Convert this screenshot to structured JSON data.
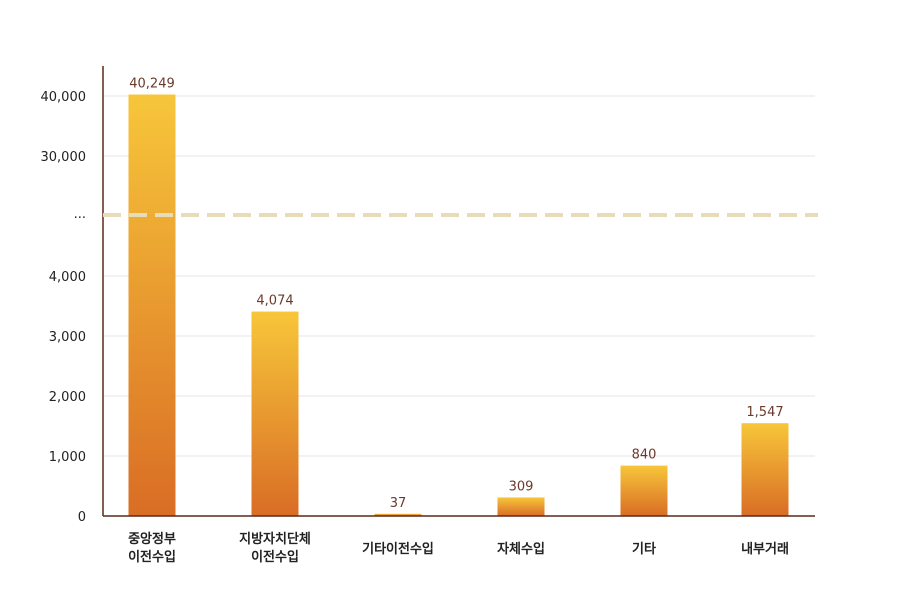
{
  "chart_data": {
    "type": "bar",
    "title": "",
    "xlabel": "",
    "ylabel": "",
    "broken_axis": true,
    "break_label": "...",
    "lower_ticks": [
      "0",
      "1,000",
      "2,000",
      "3,000",
      "4,000"
    ],
    "upper_ticks": [
      "30,000",
      "40,000"
    ],
    "categories": [
      [
        "중앙정부",
        "이전수입"
      ],
      [
        "지방자치단체",
        "이전수입"
      ],
      [
        "기타이전수입"
      ],
      [
        "자체수입"
      ],
      [
        "기타"
      ],
      [
        "내부거래"
      ]
    ],
    "values": [
      40249,
      4074,
      37,
      309,
      840,
      1547
    ],
    "value_labels": [
      "40,249",
      "4,074",
      "37",
      "309",
      "840",
      "1,547"
    ],
    "grid": true,
    "colors": {
      "bar_top": "#f7c63a",
      "bar_bottom": "#d96d25",
      "axis": "#5a2a1a",
      "grid": "#e6e6e6",
      "break_line": "#e8dcb8",
      "value_label": "#6b3a2a"
    }
  }
}
